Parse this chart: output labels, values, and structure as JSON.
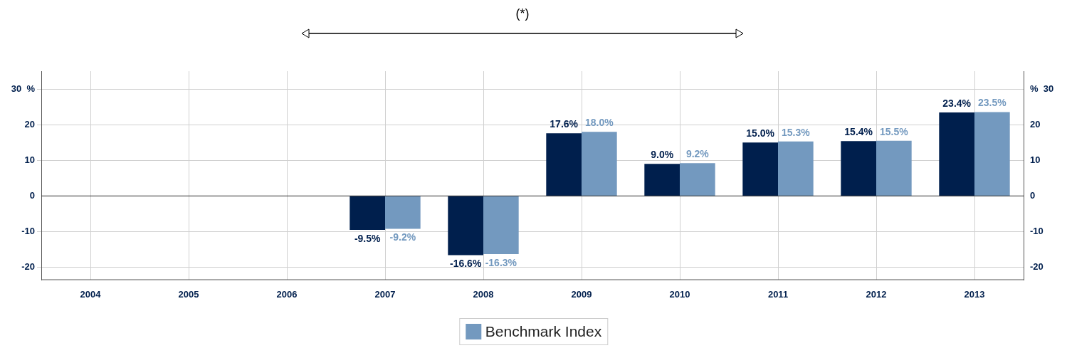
{
  "chart_data": {
    "type": "bar",
    "annotations": [
      "(*)"
    ],
    "categories": [
      "2004",
      "2005",
      "2006",
      "2007",
      "2008",
      "2009",
      "2010",
      "2011",
      "2012",
      "2013"
    ],
    "series": [
      {
        "color": "#001f4d",
        "values": [
          null,
          null,
          null,
          -9.5,
          -16.6,
          17.6,
          9.0,
          15.0,
          15.4,
          23.4
        ],
        "value_labels": [
          null,
          null,
          null,
          "-9.5%",
          "-16.6%",
          "17.6%",
          "9.0%",
          "15.0%",
          "15.4%",
          "23.4%"
        ]
      },
      {
        "name": "Benchmark Index",
        "color": "#7399bf",
        "values": [
          null,
          null,
          null,
          -9.2,
          -16.3,
          18.0,
          9.2,
          15.3,
          15.5,
          23.5
        ],
        "value_labels": [
          null,
          null,
          null,
          "-9.2%",
          "-16.3%",
          "18.0%",
          "9.2%",
          "15.3%",
          "15.5%",
          "23.5%"
        ]
      }
    ],
    "ylim": [
      -23.5,
      35
    ],
    "yticks": [
      -20,
      -10,
      0,
      10,
      20,
      {
        "value": 30,
        "label": "30  %"
      }
    ],
    "y2lim": [
      -23.5,
      35
    ],
    "y2ticks": [
      -20,
      -10,
      0,
      10,
      20,
      {
        "value": 30,
        "label": "%  30"
      }
    ],
    "grid": true,
    "legend": "bottom"
  }
}
